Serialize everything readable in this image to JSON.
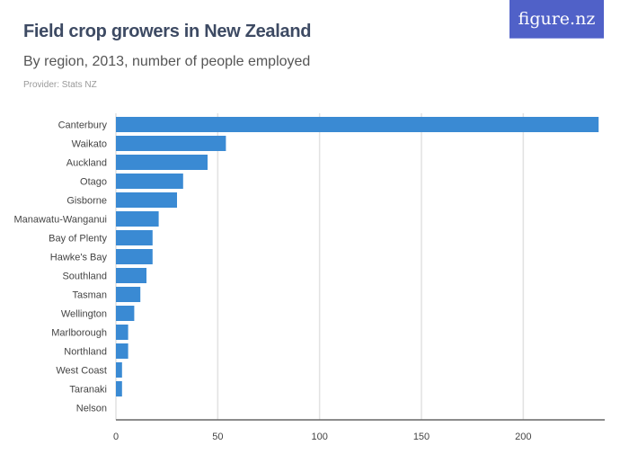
{
  "header": {
    "title": "Field crop growers in New Zealand",
    "subtitle": "By region, 2013, number of people employed",
    "provider": "Provider: Stats NZ",
    "logo": "figure.nz"
  },
  "chart_data": {
    "type": "bar",
    "orientation": "horizontal",
    "title": "Field crop growers in New Zealand",
    "subtitle": "By region, 2013, number of people employed",
    "categories": [
      "Canterbury",
      "Waikato",
      "Auckland",
      "Otago",
      "Gisborne",
      "Manawatu-Wanganui",
      "Bay of Plenty",
      "Hawke's Bay",
      "Southland",
      "Tasman",
      "Wellington",
      "Marlborough",
      "Northland",
      "West Coast",
      "Taranaki",
      "Nelson"
    ],
    "values": [
      237,
      54,
      45,
      33,
      30,
      21,
      18,
      18,
      15,
      12,
      9,
      6,
      6,
      3,
      3,
      0
    ],
    "xlim": [
      0,
      240
    ],
    "xticks": [
      0,
      50,
      100,
      150,
      200
    ],
    "grid": true,
    "color": "#3a8ad3"
  }
}
